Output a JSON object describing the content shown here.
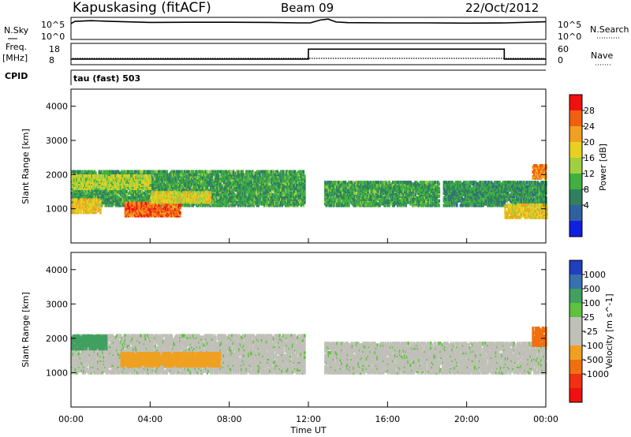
{
  "header": {
    "station": "Kapuskasing (fitACF)",
    "beam": "Beam 09",
    "date": "22/Oct/2012"
  },
  "noise_panel": {
    "left_label": "N.Sky",
    "left_ticks": [
      "10^5",
      "10^0"
    ],
    "right_label": "N.Search",
    "right_ticks": [
      "10^5",
      "10^0"
    ]
  },
  "freq_panel": {
    "left_label_1": "Freq.",
    "left_label_2": "[MHz]",
    "left_ticks": [
      "18",
      "8"
    ],
    "right_label": "Nave",
    "right_ticks": [
      "60",
      "0"
    ]
  },
  "cpid_panel": {
    "label": "CPID",
    "text": "tau (fast) 503"
  },
  "power_colorbar": {
    "title": "Power [dB]",
    "labels": [
      "28",
      "24",
      "20",
      "16",
      "12",
      "8",
      "4"
    ],
    "colors": [
      "#f01010",
      "#f06010",
      "#f0a020",
      "#e8d020",
      "#a0d040",
      "#40b040",
      "#308060",
      "#3060a0",
      "#1020e0"
    ]
  },
  "velocity_colorbar": {
    "title": "Velocity [m s^-1]",
    "labels": [
      "1000",
      "500",
      "100",
      "25",
      "-25",
      "-100",
      "-500",
      "-1000"
    ],
    "colors": [
      "#2040c0",
      "#3870b0",
      "#40a060",
      "#60c040",
      "#c0c0b8",
      "#c0c0b8",
      "#f0a020",
      "#f07010",
      "#f03010",
      "#f01010"
    ]
  },
  "chart_data": [
    {
      "type": "line",
      "ylabel": "",
      "xlim": [
        "00:00",
        "24:00"
      ],
      "series": [
        {
          "x": [
            0,
            0.2,
            1,
            2,
            4,
            6,
            8,
            10,
            11.5,
            12.1,
            12.6,
            13,
            13.4,
            14,
            16,
            18,
            20,
            22,
            24
          ],
          "y": [
            3.6,
            4.1,
            4.25,
            4.1,
            3.85,
            3.9,
            3.9,
            3.85,
            3.75,
            3.75,
            4.4,
            4.6,
            3.95,
            3.8,
            3.75,
            3.75,
            3.7,
            3.75,
            4.0
          ]
        }
      ]
    },
    {
      "type": "line",
      "xlim": [
        "00:00",
        "24:00"
      ],
      "series": [
        {
          "x": [
            0,
            12.0,
            12.0,
            21.9,
            21.9,
            24
          ],
          "y": [
            10.6,
            10.6,
            15.3,
            15.3,
            10.6,
            10.6
          ]
        }
      ]
    },
    {
      "type": "heatmap",
      "xlabel": "",
      "ylabel": "Slant Range [km]",
      "xlim": [
        "00:00",
        "24:00"
      ],
      "ylim": [
        0,
        4500
      ],
      "yticks": [
        1000,
        2000,
        3000,
        4000
      ],
      "regions": [
        {
          "t0": 0,
          "t1": 11.8,
          "r0": 1100,
          "r1": 2100,
          "level": 10
        },
        {
          "t0": 0,
          "t1": 4,
          "r0": 1600,
          "r1": 2000,
          "level": 16
        },
        {
          "t0": 0,
          "t1": 1.5,
          "r0": 900,
          "r1": 1300,
          "level": 20
        },
        {
          "t0": 2.7,
          "t1": 5.5,
          "r0": 800,
          "r1": 1200,
          "level": 26
        },
        {
          "t0": 4,
          "t1": 7,
          "r0": 1200,
          "r1": 1500,
          "level": 18
        },
        {
          "t0": 12.8,
          "t1": 18.6,
          "r0": 1100,
          "r1": 1800,
          "level": 10
        },
        {
          "t0": 18.8,
          "t1": 24,
          "r0": 1100,
          "r1": 1800,
          "level": 9
        },
        {
          "t0": 21.9,
          "t1": 24,
          "r0": 750,
          "r1": 1150,
          "level": 19
        },
        {
          "t0": 23.3,
          "t1": 24,
          "r0": 1900,
          "r1": 2300,
          "level": 24
        }
      ]
    },
    {
      "type": "heatmap",
      "xlabel": "Time UT",
      "ylabel": "Slant Range [km]",
      "xlim": [
        "00:00",
        "24:00"
      ],
      "ylim": [
        0,
        4500
      ],
      "xticks": [
        "00:00",
        "04:00",
        "08:00",
        "12:00",
        "16:00",
        "20:00",
        "00:00"
      ],
      "yticks": [
        1000,
        2000,
        3000,
        4000
      ],
      "regions": [
        {
          "t0": 0,
          "t1": 11.8,
          "r0": 1000,
          "r1": 2100,
          "level": 0
        },
        {
          "t0": 0,
          "t1": 1.8,
          "r0": 1700,
          "r1": 2100,
          "level": 150
        },
        {
          "t0": 2.5,
          "t1": 7.5,
          "r0": 1200,
          "r1": 1600,
          "level": -150
        },
        {
          "t0": 12.8,
          "t1": 24,
          "r0": 1000,
          "r1": 1900,
          "level": 0
        },
        {
          "t0": 23.3,
          "t1": 24,
          "r0": 1800,
          "r1": 2300,
          "level": -600
        }
      ]
    }
  ]
}
